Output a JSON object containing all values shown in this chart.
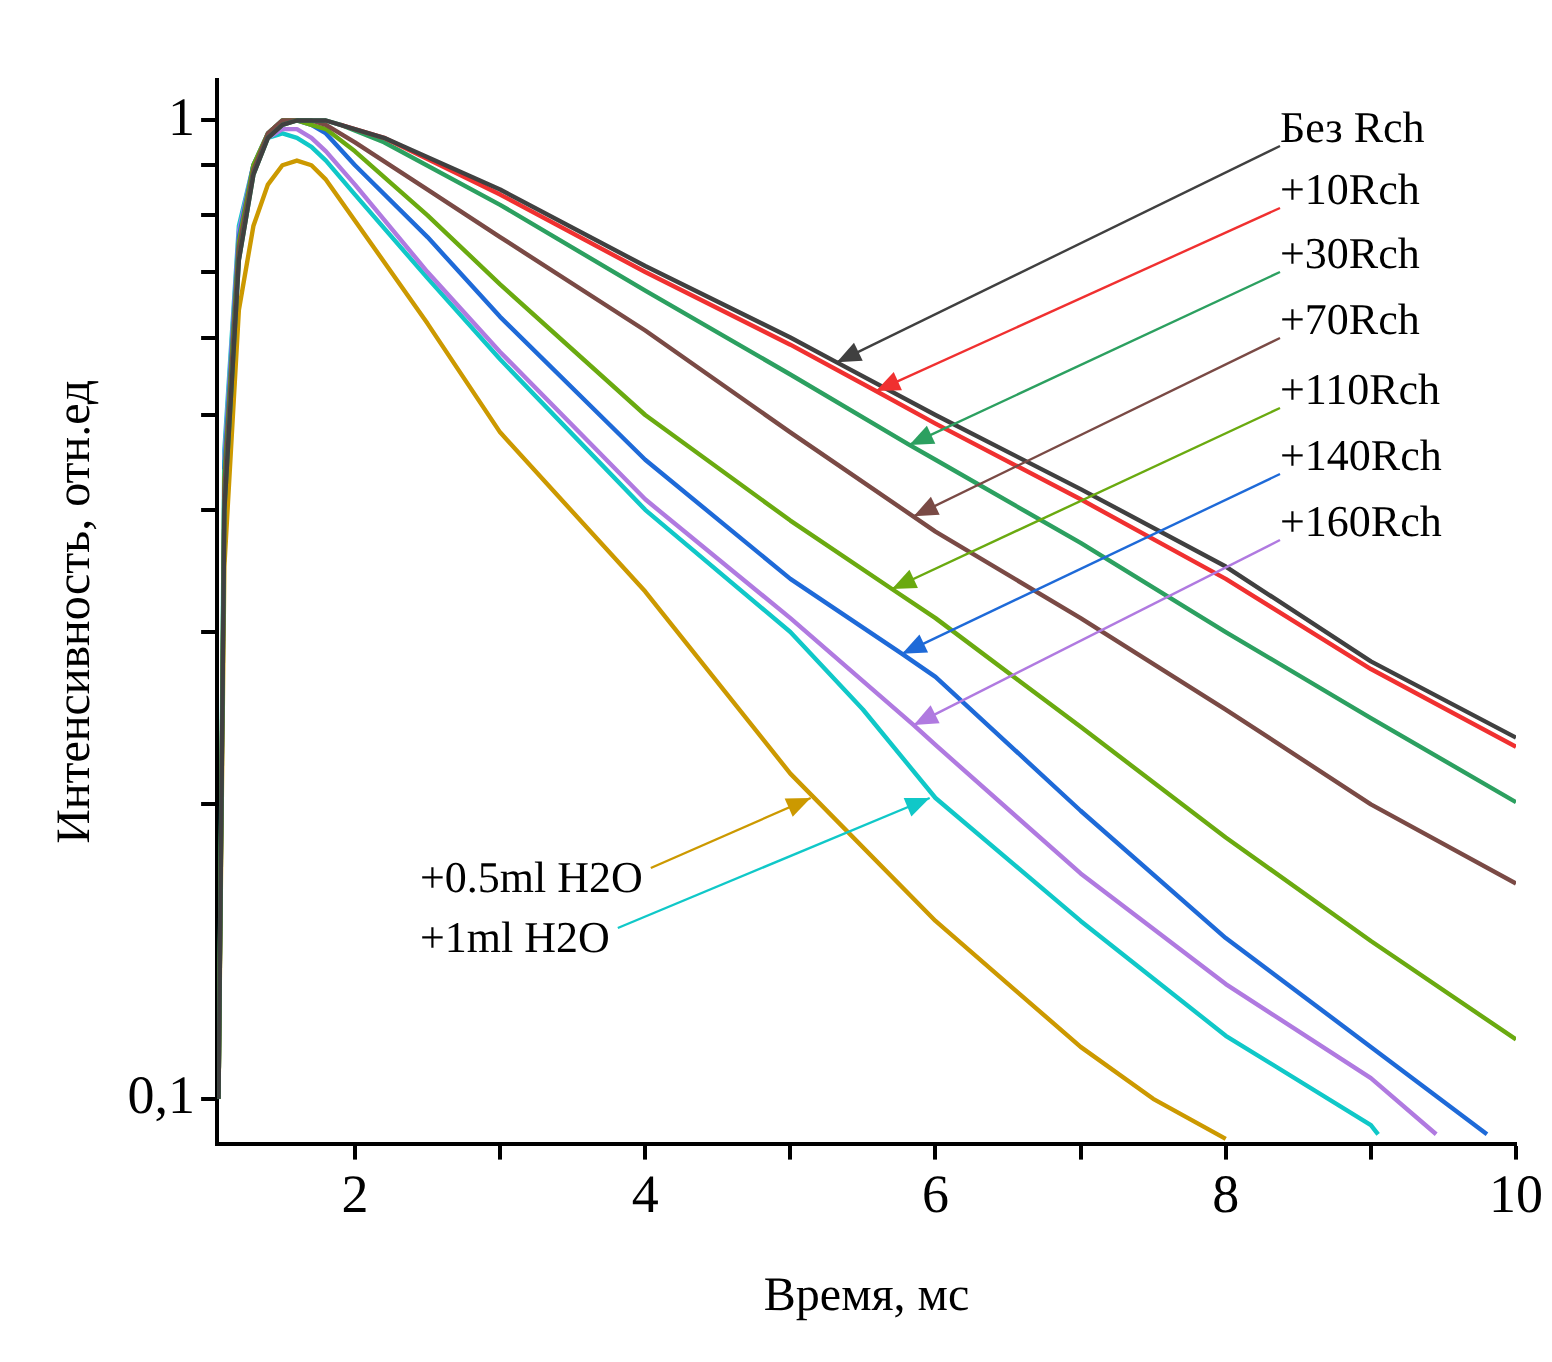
{
  "chart_data": {
    "type": "line",
    "xlabel": "Время, мс",
    "ylabel": "Интенсивность, отн.ед",
    "log": "y",
    "grid": false,
    "legend": false,
    "marker": "none",
    "line_style": "solid",
    "xlim": [
      1.05,
      10
    ],
    "xticks": [
      2,
      {
        "value": 3,
        "label": null
      },
      4,
      {
        "value": 5,
        "label": null
      },
      6,
      {
        "value": 7,
        "label": null
      },
      8,
      {
        "value": 9,
        "label": null
      },
      10
    ],
    "ylim": [
      0.09,
      1.1
    ],
    "yticks": [
      {
        "value": 0.1,
        "label": "0,1"
      },
      {
        "value": 0.2,
        "label": null
      },
      {
        "value": 0.3,
        "label": null
      },
      {
        "value": 0.4,
        "label": null
      },
      {
        "value": 0.5,
        "label": null
      },
      {
        "value": 0.6,
        "label": null
      },
      {
        "value": 0.7,
        "label": null
      },
      {
        "value": 0.8,
        "label": null
      },
      {
        "value": 0.9,
        "label": null
      },
      1
    ],
    "series": [
      {
        "color": "#404040",
        "x": [
          1.06,
          1.1,
          1.2,
          1.3,
          1.4,
          1.5,
          1.6,
          1.7,
          1.8,
          1.9,
          2.2,
          3,
          4,
          5,
          5.32,
          6,
          7,
          8,
          9,
          10
        ],
        "values": [
          0.1,
          0.4,
          0.72,
          0.88,
          0.96,
          0.99,
          1.0,
          1.0,
          1.0,
          0.99,
          0.96,
          0.85,
          0.71,
          0.6,
          0.566,
          0.5,
          0.42,
          0.35,
          0.28,
          0.234
        ]
      },
      {
        "color": "#f03030",
        "x": [
          1.9,
          2.2,
          3,
          4,
          5,
          5.59,
          6,
          7,
          8,
          9,
          10
        ],
        "values": [
          0.99,
          0.96,
          0.84,
          0.7,
          0.59,
          0.529,
          0.49,
          0.41,
          0.34,
          0.275,
          0.229
        ]
      },
      {
        "color": "#2ca060",
        "x": [
          1.06,
          1.1,
          1.2,
          1.3,
          1.4,
          1.5,
          1.6,
          1.7,
          1.8,
          1.9,
          2.2,
          3,
          4,
          5,
          5.82,
          6,
          7,
          8,
          9,
          10
        ],
        "values": [
          0.1,
          0.4,
          0.72,
          0.88,
          0.96,
          0.99,
          1.0,
          1.0,
          1.0,
          0.99,
          0.95,
          0.82,
          0.67,
          0.55,
          0.466,
          0.45,
          0.37,
          0.3,
          0.245,
          0.201
        ]
      },
      {
        "color": "#7a4a45",
        "x": [
          1.06,
          1.1,
          1.2,
          1.3,
          1.4,
          1.5,
          1.6,
          1.7,
          1.8,
          2,
          2.5,
          3,
          4,
          5,
          6,
          7,
          8,
          9,
          10
        ],
        "values": [
          0.1,
          0.42,
          0.74,
          0.89,
          0.97,
          1.0,
          1.0,
          1.0,
          0.99,
          0.95,
          0.85,
          0.76,
          0.61,
          0.48,
          0.38,
          0.31,
          0.25,
          0.2,
          0.166
        ]
      },
      {
        "color": "#6aaa10",
        "x": [
          1.06,
          1.1,
          1.2,
          1.3,
          1.4,
          1.5,
          1.6,
          1.7,
          1.8,
          2,
          2.5,
          3,
          4,
          5,
          5.7,
          6,
          7,
          8,
          9,
          10
        ],
        "values": [
          0.1,
          0.43,
          0.75,
          0.9,
          0.97,
          1.0,
          1.0,
          0.99,
          0.98,
          0.93,
          0.8,
          0.68,
          0.5,
          0.39,
          0.332,
          0.31,
          0.24,
          0.185,
          0.145,
          0.115
        ]
      },
      {
        "color": "#1e6ad8",
        "x": [
          1.1,
          1.2,
          1.3,
          1.4,
          1.5,
          1.6,
          1.7,
          1.8,
          2,
          2.5,
          3,
          4,
          5,
          5.77,
          6,
          7,
          8,
          9,
          9.8
        ],
        "values": [
          0.44,
          0.76,
          0.9,
          0.97,
          1.0,
          1.0,
          0.99,
          0.97,
          0.9,
          0.76,
          0.63,
          0.45,
          0.34,
          0.285,
          0.27,
          0.197,
          0.146,
          0.113,
          0.092
        ]
      },
      {
        "color": "#b07ae0",
        "x": [
          1.1,
          1.2,
          1.3,
          1.4,
          1.5,
          1.6,
          1.7,
          1.8,
          2,
          2.5,
          3,
          4,
          5,
          5.85,
          6,
          7,
          8,
          9,
          9.45
        ],
        "values": [
          0.45,
          0.77,
          0.9,
          0.96,
          0.98,
          0.98,
          0.96,
          0.93,
          0.86,
          0.7,
          0.58,
          0.41,
          0.31,
          0.241,
          0.23,
          0.17,
          0.131,
          0.105,
          0.092
        ]
      },
      {
        "color": "#cc9900",
        "x": [
          1.06,
          1.1,
          1.2,
          1.3,
          1.4,
          1.5,
          1.6,
          1.7,
          1.8,
          2,
          2.5,
          3,
          4,
          5,
          6,
          7,
          7.5,
          8
        ],
        "values": [
          0.1,
          0.35,
          0.64,
          0.78,
          0.86,
          0.9,
          0.91,
          0.9,
          0.87,
          0.79,
          0.62,
          0.48,
          0.33,
          0.215,
          0.152,
          0.113,
          0.1,
          0.091
        ]
      },
      {
        "color": "#10c8c8",
        "x": [
          1.06,
          1.1,
          1.2,
          1.3,
          1.4,
          1.5,
          1.6,
          1.7,
          1.8,
          2,
          2.5,
          3,
          4,
          5,
          5.5,
          6,
          7,
          8,
          9,
          9.05
        ],
        "values": [
          0.1,
          0.46,
          0.78,
          0.9,
          0.96,
          0.97,
          0.96,
          0.94,
          0.91,
          0.84,
          0.69,
          0.57,
          0.4,
          0.3,
          0.25,
          0.203,
          0.152,
          0.116,
          0.094,
          0.092
        ]
      }
    ],
    "annotations": [
      {
        "text": "Без Rch",
        "x": 5.32,
        "y": 0.566
      },
      {
        "text": "+10Rch",
        "x": 5.59,
        "y": 0.529
      },
      {
        "text": "+30Rch",
        "x": 5.82,
        "y": 0.466
      },
      {
        "text": "+70Rch",
        "x": 5.85,
        "y": 0.394
      },
      {
        "text": "+110Rch",
        "x": 5.7,
        "y": 0.332
      },
      {
        "text": "+140Rch",
        "x": 5.77,
        "y": 0.285
      },
      {
        "text": "+160Rch",
        "x": 5.85,
        "y": 0.241
      },
      {
        "text": "+0.5ml H2O",
        "x": 5.14,
        "y": 0.203
      },
      {
        "text": "+1ml H2O",
        "x": 5.96,
        "y": 0.203
      }
    ]
  }
}
